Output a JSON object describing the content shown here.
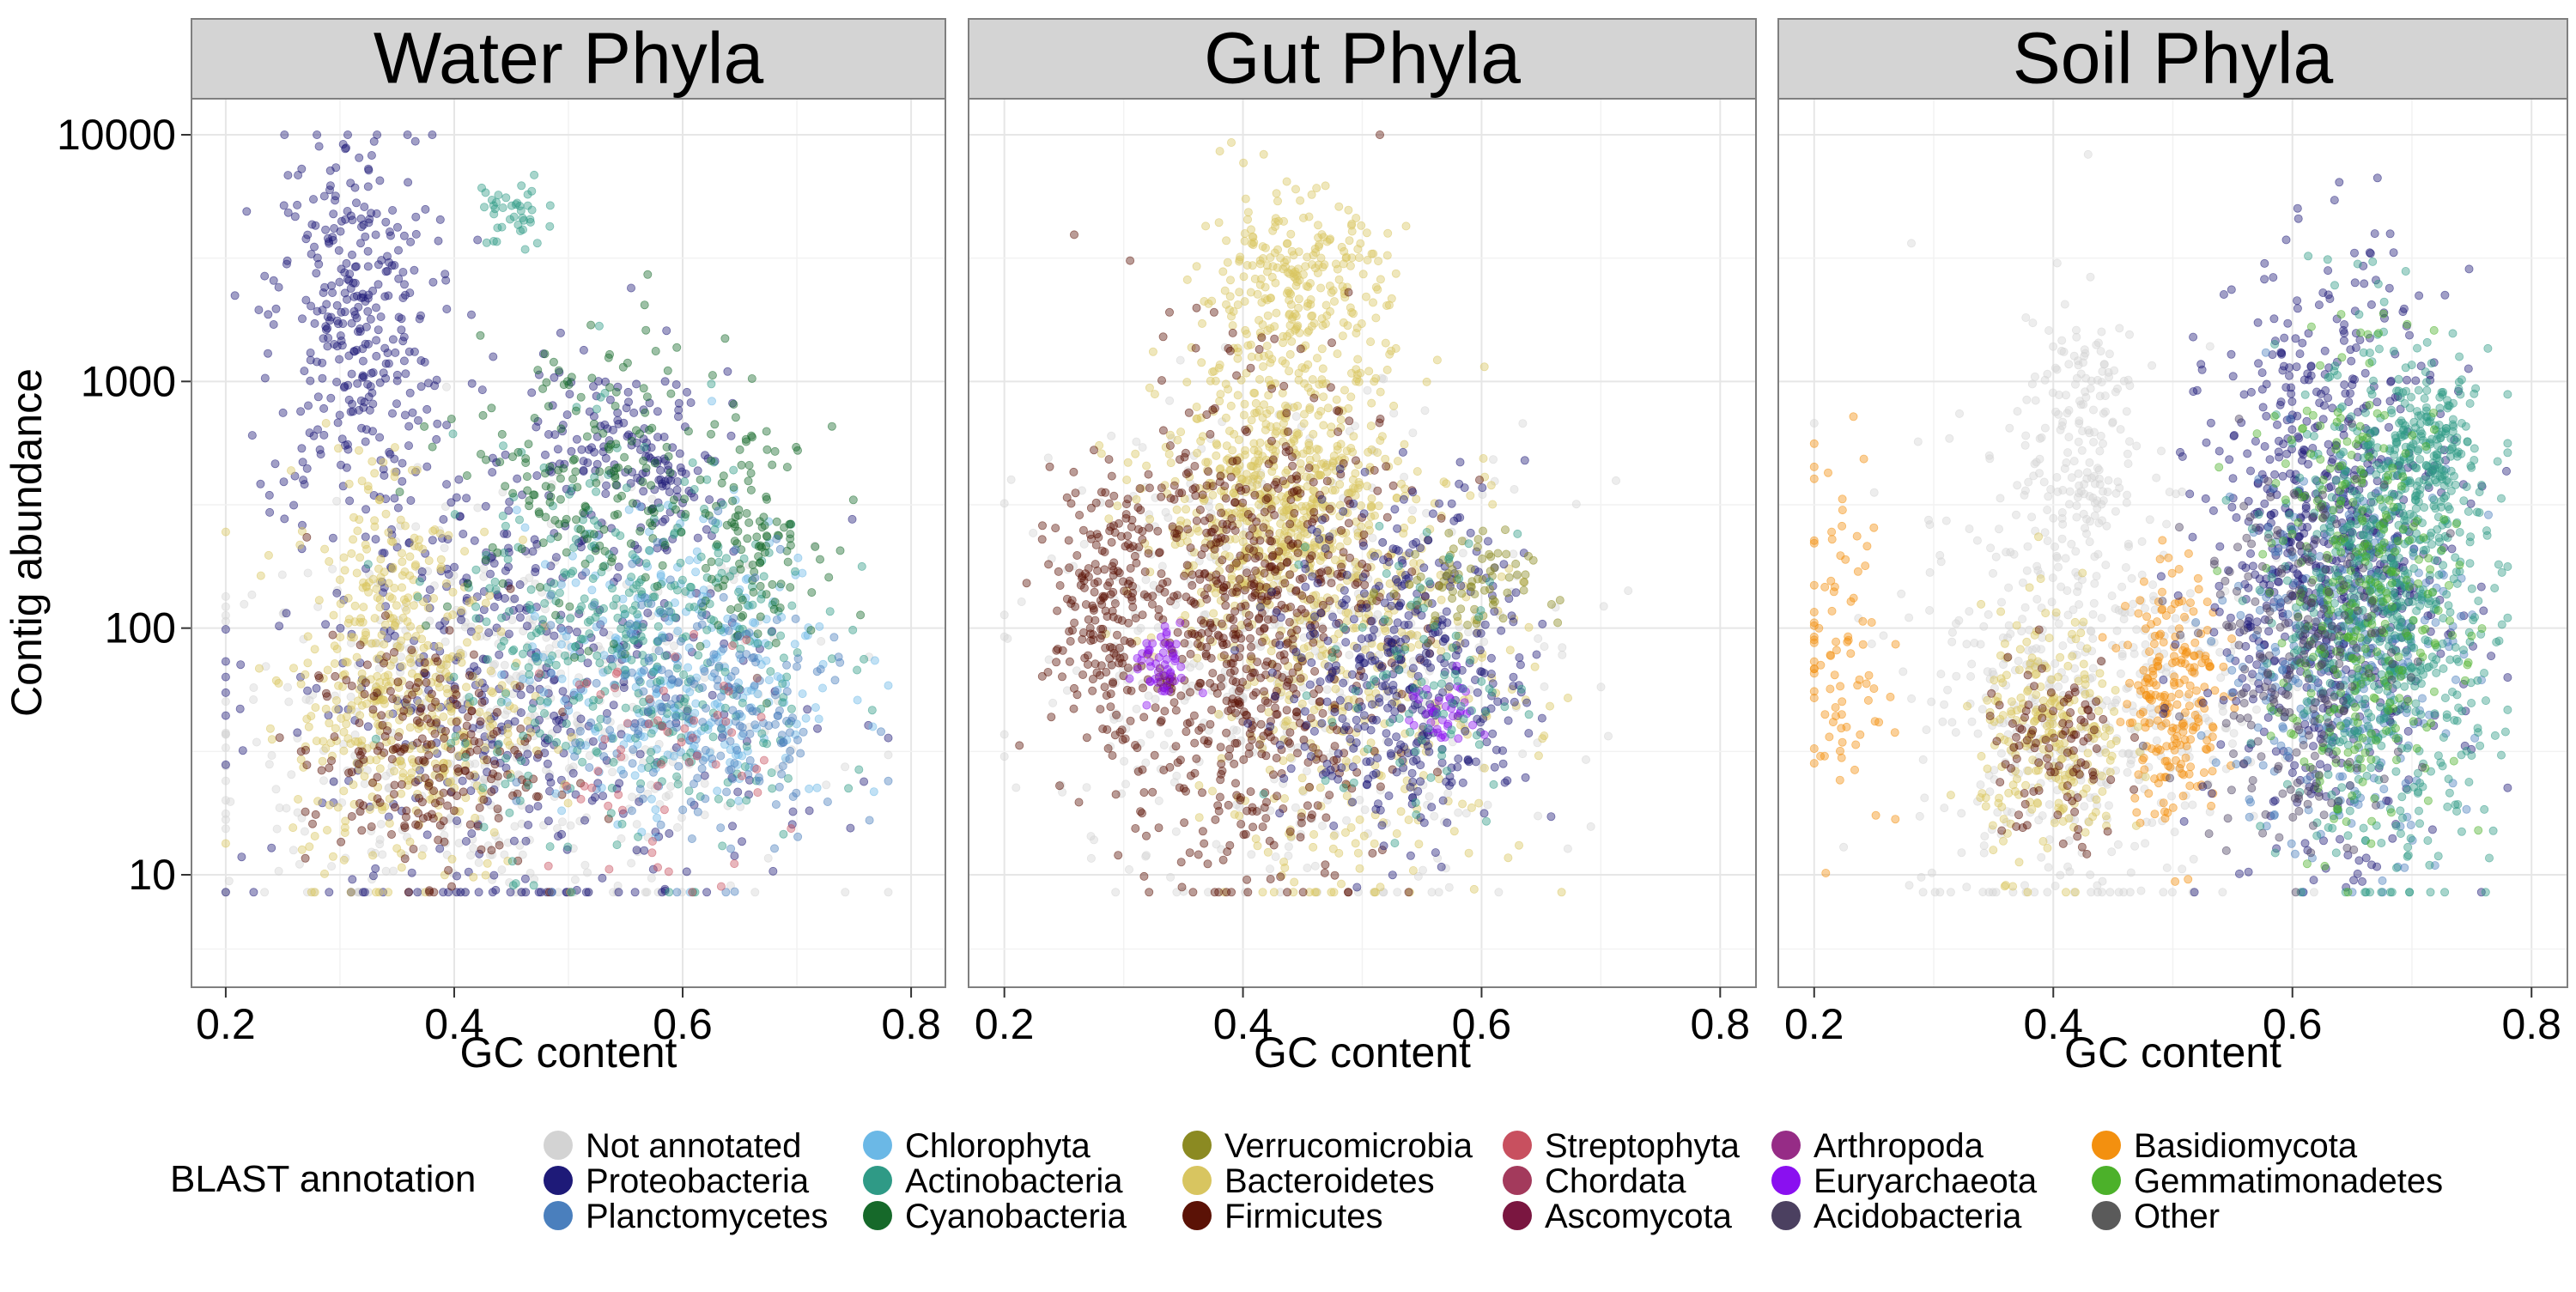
{
  "chart_data": {
    "type": "scatter",
    "facets": [
      {
        "title": "Water Phyla",
        "xlabel": "GC content",
        "clusters": [
          {
            "series": "Not annotated",
            "gc": 0.45,
            "abundance": 40,
            "sx": 0.13,
            "sy": 0.42,
            "n": 520
          },
          {
            "series": "Proteobacteria",
            "gc": 0.31,
            "abundance": 1800,
            "sx": 0.035,
            "sy": 0.4,
            "n": 320
          },
          {
            "series": "Proteobacteria",
            "gc": 0.46,
            "abundance": 60,
            "sx": 0.11,
            "sy": 0.55,
            "n": 520
          },
          {
            "series": "Proteobacteria",
            "gc": 0.53,
            "abundance": 650,
            "sx": 0.035,
            "sy": 0.12,
            "n": 90
          },
          {
            "series": "Proteobacteria",
            "gc": 0.58,
            "abundance": 380,
            "sx": 0.02,
            "sy": 0.1,
            "n": 50
          },
          {
            "series": "Bacteroidetes",
            "gc": 0.36,
            "abundance": 45,
            "sx": 0.05,
            "sy": 0.35,
            "n": 380
          },
          {
            "series": "Bacteroidetes",
            "gc": 0.33,
            "abundance": 150,
            "sx": 0.03,
            "sy": 0.3,
            "n": 120
          },
          {
            "series": "Firmicutes",
            "gc": 0.37,
            "abundance": 30,
            "sx": 0.05,
            "sy": 0.25,
            "n": 220
          },
          {
            "series": "Chlorophyta",
            "gc": 0.6,
            "abundance": 70,
            "sx": 0.07,
            "sy": 0.3,
            "n": 280
          },
          {
            "series": "Actinobacteria",
            "gc": 0.56,
            "abundance": 80,
            "sx": 0.08,
            "sy": 0.4,
            "n": 420
          },
          {
            "series": "Actinobacteria",
            "gc": 0.45,
            "abundance": 4800,
            "sx": 0.015,
            "sy": 0.08,
            "n": 40
          },
          {
            "series": "Cyanobacteria",
            "gc": 0.66,
            "abundance": 250,
            "sx": 0.03,
            "sy": 0.2,
            "n": 110
          },
          {
            "series": "Cyanobacteria",
            "gc": 0.52,
            "abundance": 400,
            "sx": 0.06,
            "sy": 0.3,
            "n": 180
          },
          {
            "series": "Planctomycetes",
            "gc": 0.62,
            "abundance": 45,
            "sx": 0.06,
            "sy": 0.3,
            "n": 220
          },
          {
            "series": "Streptophyta",
            "gc": 0.58,
            "abundance": 30,
            "sx": 0.05,
            "sy": 0.25,
            "n": 60
          }
        ]
      },
      {
        "title": "Gut Phyla",
        "xlabel": "GC content",
        "clusters": [
          {
            "series": "Not annotated",
            "gc": 0.44,
            "abundance": 80,
            "sx": 0.11,
            "sy": 0.5,
            "n": 450
          },
          {
            "series": "Bacteroidetes",
            "gc": 0.44,
            "abundance": 2300,
            "sx": 0.04,
            "sy": 0.2,
            "n": 280
          },
          {
            "series": "Bacteroidetes",
            "gc": 0.43,
            "abundance": 300,
            "sx": 0.05,
            "sy": 0.3,
            "n": 650
          },
          {
            "series": "Bacteroidetes",
            "gc": 0.5,
            "abundance": 70,
            "sx": 0.07,
            "sy": 0.5,
            "n": 380
          },
          {
            "series": "Firmicutes",
            "gc": 0.4,
            "abundance": 100,
            "sx": 0.06,
            "sy": 0.5,
            "n": 750
          },
          {
            "series": "Firmicutes",
            "gc": 0.28,
            "abundance": 120,
            "sx": 0.02,
            "sy": 0.25,
            "n": 160
          },
          {
            "series": "Proteobacteria",
            "gc": 0.54,
            "abundance": 70,
            "sx": 0.05,
            "sy": 0.35,
            "n": 420
          },
          {
            "series": "Euryarchaeota",
            "gc": 0.33,
            "abundance": 70,
            "sx": 0.012,
            "sy": 0.08,
            "n": 50
          },
          {
            "series": "Euryarchaeota",
            "gc": 0.57,
            "abundance": 45,
            "sx": 0.015,
            "sy": 0.08,
            "n": 40
          },
          {
            "series": "Verrucomicrobia",
            "gc": 0.58,
            "abundance": 140,
            "sx": 0.03,
            "sy": 0.12,
            "n": 80
          },
          {
            "series": "Actinobacteria",
            "gc": 0.55,
            "abundance": 60,
            "sx": 0.04,
            "sy": 0.3,
            "n": 90
          }
        ]
      },
      {
        "title": "Soil Phyla",
        "xlabel": "GC content",
        "clusters": [
          {
            "series": "Not annotated",
            "gc": 0.42,
            "abundance": 60,
            "sx": 0.07,
            "sy": 0.5,
            "n": 500
          },
          {
            "series": "Not annotated",
            "gc": 0.42,
            "abundance": 700,
            "sx": 0.025,
            "sy": 0.3,
            "n": 150
          },
          {
            "series": "Basidiomycota",
            "gc": 0.22,
            "abundance": 80,
            "sx": 0.02,
            "sy": 0.4,
            "n": 90
          },
          {
            "series": "Basidiomycota",
            "gc": 0.5,
            "abundance": 55,
            "sx": 0.02,
            "sy": 0.25,
            "n": 220
          },
          {
            "series": "Bacteroidetes",
            "gc": 0.4,
            "abundance": 35,
            "sx": 0.03,
            "sy": 0.25,
            "n": 260
          },
          {
            "series": "Firmicutes",
            "gc": 0.4,
            "abundance": 30,
            "sx": 0.03,
            "sy": 0.2,
            "n": 100
          },
          {
            "series": "Proteobacteria",
            "gc": 0.63,
            "abundance": 200,
            "sx": 0.05,
            "sy": 0.55,
            "n": 780
          },
          {
            "series": "Planctomycetes",
            "gc": 0.64,
            "abundance": 80,
            "sx": 0.05,
            "sy": 0.4,
            "n": 320
          },
          {
            "series": "Actinobacteria",
            "gc": 0.68,
            "abundance": 120,
            "sx": 0.045,
            "sy": 0.5,
            "n": 720
          },
          {
            "series": "Actinobacteria",
            "gc": 0.71,
            "abundance": 500,
            "sx": 0.02,
            "sy": 0.15,
            "n": 160
          },
          {
            "series": "Gemmatimonadetes",
            "gc": 0.66,
            "abundance": 130,
            "sx": 0.04,
            "sy": 0.45,
            "n": 320
          },
          {
            "series": "Acidobacteria",
            "gc": 0.6,
            "abundance": 80,
            "sx": 0.04,
            "sy": 0.4,
            "n": 220
          }
        ]
      }
    ],
    "ylabel": "Contig abundance",
    "x_ticks": [
      "0.2",
      "0.4",
      "0.6",
      "0.8"
    ],
    "x_tick_values": [
      0.2,
      0.4,
      0.6,
      0.8
    ],
    "xlim": [
      0.17,
      0.83
    ],
    "y_scale": "log",
    "y_ticks": [
      "10",
      "100",
      "1000",
      "10000"
    ],
    "y_tick_values": [
      10,
      100,
      1000,
      10000
    ],
    "ylim": [
      3.5,
      14000
    ],
    "grid": true,
    "legend_placement": "bottom",
    "legend_title": "BLAST annotation",
    "legend": [
      {
        "name": "Not annotated",
        "color": "#d3d3d3"
      },
      {
        "name": "Proteobacteria",
        "color": "#1e1a78"
      },
      {
        "name": "Planctomycetes",
        "color": "#4a7fbd"
      },
      {
        "name": "Chlorophyta",
        "color": "#6bb8e6"
      },
      {
        "name": "Actinobacteria",
        "color": "#2f9a86"
      },
      {
        "name": "Cyanobacteria",
        "color": "#16692a"
      },
      {
        "name": "Verrucomicrobia",
        "color": "#8b8a22"
      },
      {
        "name": "Bacteroidetes",
        "color": "#d8c560"
      },
      {
        "name": "Firmicutes",
        "color": "#5b1206"
      },
      {
        "name": "Streptophyta",
        "color": "#c8505f"
      },
      {
        "name": "Chordata",
        "color": "#a33a5c"
      },
      {
        "name": "Ascomycota",
        "color": "#7a1640"
      },
      {
        "name": "Arthropoda",
        "color": "#962c86"
      },
      {
        "name": "Euryarchaeota",
        "color": "#8a10f0"
      },
      {
        "name": "Acidobacteria",
        "color": "#4b4060"
      },
      {
        "name": "Basidiomycota",
        "color": "#f3900f"
      },
      {
        "name": "Gemmatimonadetes",
        "color": "#4cb12a"
      },
      {
        "name": "Other",
        "color": "#5a5a5a"
      }
    ]
  }
}
